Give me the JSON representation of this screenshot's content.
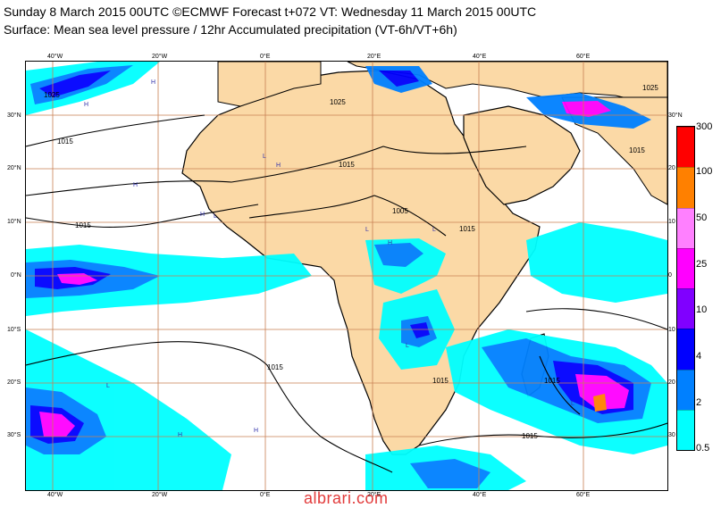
{
  "header": {
    "line1": "Sunday 8 March 2015 00UTC ©ECMWF Forecast t+072 VT: Wednesday 11 March 2015 00UTC",
    "line2": "Surface: Mean sea level pressure / 12hr Accumulated precipitation (VT-6h/VT+6h)"
  },
  "map": {
    "colors": {
      "land": "#fbd9a6",
      "ocean": "#ffffff",
      "gridline": "#c87f53",
      "coastline": "#000000"
    },
    "lon_labels": [
      "40°W",
      "20°W",
      "0°E",
      "20°E",
      "40°E",
      "60°E"
    ],
    "lat_labels_left": [
      "30°N",
      "20°N",
      "10°N",
      "0°N",
      "10°S",
      "20°S",
      "30°S"
    ],
    "lat_labels_right": [
      "30°N",
      "20",
      "10",
      "0",
      "10",
      "20",
      "30"
    ],
    "isobar_labels": [
      "1025",
      "1025",
      "1025",
      "1015",
      "1015",
      "1015",
      "1015",
      "1015",
      "1005",
      "1015",
      "1015",
      "1015",
      "1015"
    ],
    "pressure_markers": [
      "H",
      "H",
      "H",
      "H",
      "H",
      "L",
      "L",
      "L",
      "L",
      "L",
      "H",
      "H",
      "H",
      "L",
      "L"
    ]
  },
  "colorbar": {
    "labels": [
      "300",
      "100",
      "50",
      "25",
      "10",
      "4",
      "2",
      "0.5"
    ],
    "colors": [
      "#00ffff",
      "#0080ff",
      "#0000ff",
      "#8000ff",
      "#ff00ff",
      "#ff80ff",
      "#ff8000",
      "#ff0000"
    ]
  },
  "watermark": "albrari.com"
}
